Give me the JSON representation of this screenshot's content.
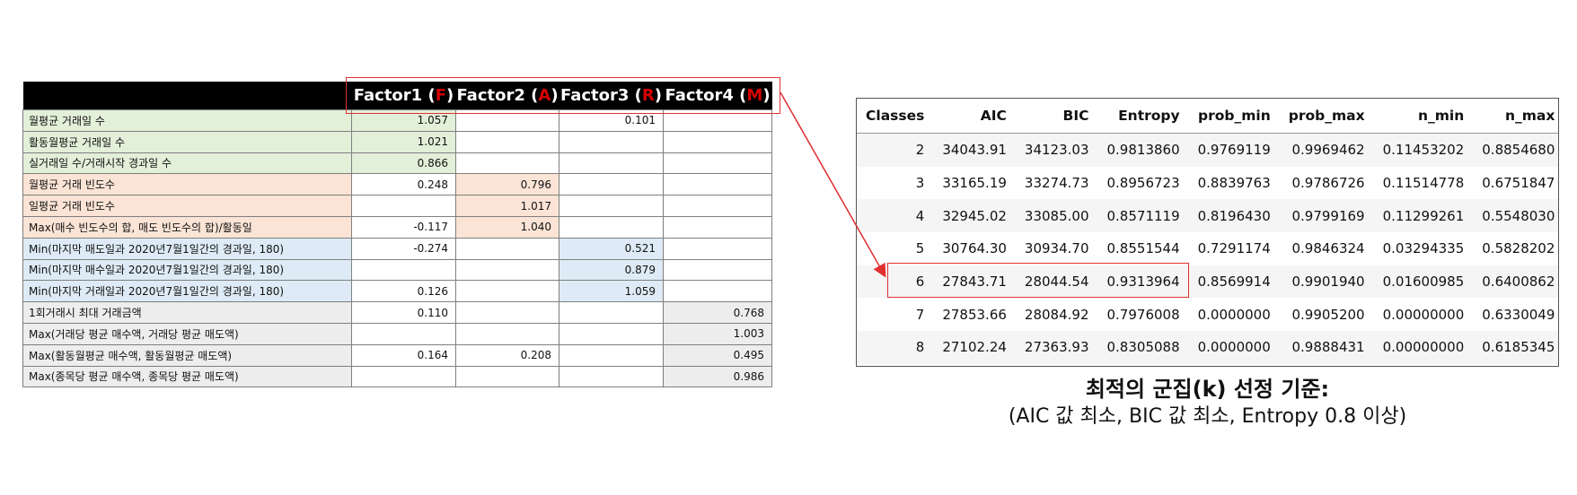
{
  "factor_table": {
    "headers": [
      {
        "prefix": "Factor1 (",
        "letter": "F",
        "suffix": ")"
      },
      {
        "prefix": "Factor2 (",
        "letter": "A",
        "suffix": ")"
      },
      {
        "prefix": "Factor3 (",
        "letter": "R",
        "suffix": ")"
      },
      {
        "prefix": "Factor4 (",
        "letter": "M",
        "suffix": ")"
      }
    ],
    "rows": [
      {
        "label": "월평균 거래일 수",
        "group": "green",
        "values": [
          "1.057",
          "",
          "0.101",
          ""
        ]
      },
      {
        "label": "활동월평균 거래일 수",
        "group": "green",
        "values": [
          "1.021",
          "",
          "",
          ""
        ]
      },
      {
        "label": "실거래일 수/거래시작 경과일 수",
        "group": "green",
        "values": [
          "0.866",
          "",
          "",
          ""
        ]
      },
      {
        "label": "월평균 거래 빈도수",
        "group": "peach",
        "values": [
          "0.248",
          "0.796",
          "",
          ""
        ]
      },
      {
        "label": "일평균 거래 빈도수",
        "group": "peach",
        "values": [
          "",
          "1.017",
          "",
          ""
        ]
      },
      {
        "label": "Max(매수 빈도수의 합, 매도 빈도수의 합)/활동일",
        "group": "peach",
        "values": [
          "-0.117",
          "1.040",
          "",
          ""
        ]
      },
      {
        "label": "Min(마지막 매도일과 2020년7월1일간의 경과일, 180)",
        "group": "blue",
        "values": [
          "-0.274",
          "",
          "0.521",
          ""
        ]
      },
      {
        "label": "Min(마지막 매수일과 2020년7월1일간의 경과일, 180)",
        "group": "blue",
        "values": [
          "",
          "",
          "0.879",
          ""
        ]
      },
      {
        "label": "Min(마지막 거래일과 2020년7월1일간의 경과일, 180)",
        "group": "blue",
        "values": [
          "0.126",
          "",
          "1.059",
          ""
        ]
      },
      {
        "label": "1회거래시 최대 거래금액",
        "group": "gray",
        "values": [
          "0.110",
          "",
          "",
          "0.768"
        ]
      },
      {
        "label": "Max(거래당 평균 매수액, 거래당 평균 매도액)",
        "group": "gray",
        "values": [
          "",
          "",
          "",
          "1.003"
        ]
      },
      {
        "label": "Max(활동월평균 매수액, 활동월평균 매도액)",
        "group": "gray",
        "values": [
          "0.164",
          "0.208",
          "",
          "0.495"
        ]
      },
      {
        "label": "Max(종목당 평균 매수액, 종목당 평균 매도액)",
        "group": "gray",
        "values": [
          "",
          "",
          "",
          "0.986"
        ]
      }
    ]
  },
  "classes_table": {
    "headers": [
      "Classes",
      "AIC",
      "BIC",
      "Entropy",
      "prob_min",
      "prob_max",
      "n_min",
      "n_max"
    ],
    "rows": [
      [
        "2",
        "34043.91",
        "34123.03",
        "0.9813860",
        "0.9769119",
        "0.9969462",
        "0.11453202",
        "0.8854680"
      ],
      [
        "3",
        "33165.19",
        "33274.73",
        "0.8956723",
        "0.8839763",
        "0.9786726",
        "0.11514778",
        "0.6751847"
      ],
      [
        "4",
        "32945.02",
        "33085.00",
        "0.8571119",
        "0.8196430",
        "0.9799169",
        "0.11299261",
        "0.5548030"
      ],
      [
        "5",
        "30764.30",
        "30934.70",
        "0.8551544",
        "0.7291174",
        "0.9846324",
        "0.03294335",
        "0.5828202"
      ],
      [
        "6",
        "27843.71",
        "28044.54",
        "0.9313964",
        "0.8569914",
        "0.9901940",
        "0.01600985",
        "0.6400862"
      ],
      [
        "7",
        "27853.66",
        "28084.92",
        "0.7976008",
        "0.0000000",
        "0.9905200",
        "0.00000000",
        "0.6330049"
      ],
      [
        "8",
        "27102.24",
        "27363.93",
        "0.8305088",
        "0.0000000",
        "0.9888431",
        "0.00000000",
        "0.6185345"
      ]
    ]
  },
  "caption": {
    "title": "최적의 군집(k) 선정 기준:",
    "subtitle": "(AIC 값 최소, BIC 값 최소, Entropy 0.8 이상)"
  },
  "colors": {
    "highlight_red": "#e03030",
    "factor_letter_red": "#d40000",
    "group_green": "#e2efd9",
    "group_peach": "#fbe4d5",
    "group_blue": "#deebf6",
    "group_gray": "#ededed"
  }
}
